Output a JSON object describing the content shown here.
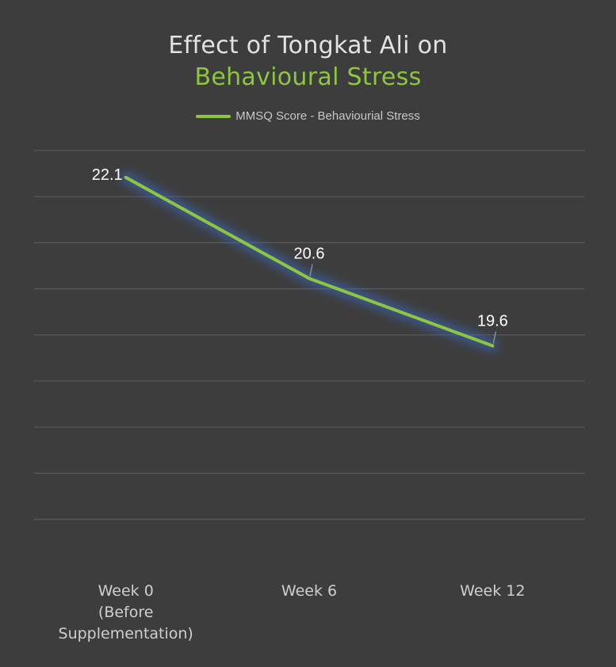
{
  "header": {
    "title_line1": "Effect of Tongkat Ali on",
    "title_line2": "Behavioural Stress"
  },
  "colors": {
    "background": "#3d3d3d",
    "series": "#8dc63f",
    "glow": "#3a6fd8",
    "grid": "#5a5a5a"
  },
  "chart_data": {
    "type": "line",
    "title": "Effect of Tongkat Ali on Behavioural Stress",
    "categories": [
      [
        "Week 0",
        "(Before",
        "Supplementation)"
      ],
      [
        "Week 6"
      ],
      [
        "Week 12"
      ]
    ],
    "series": [
      {
        "name": "MMSQ Score - Behaviourial Stress",
        "values": [
          22.1,
          20.6,
          19.6
        ],
        "labels": [
          "22.1",
          "20.6",
          "19.6"
        ]
      }
    ],
    "ylim": [
      16.5,
      22.5
    ],
    "grid": true,
    "legend": "top-center",
    "xlabel": "",
    "ylabel": ""
  }
}
